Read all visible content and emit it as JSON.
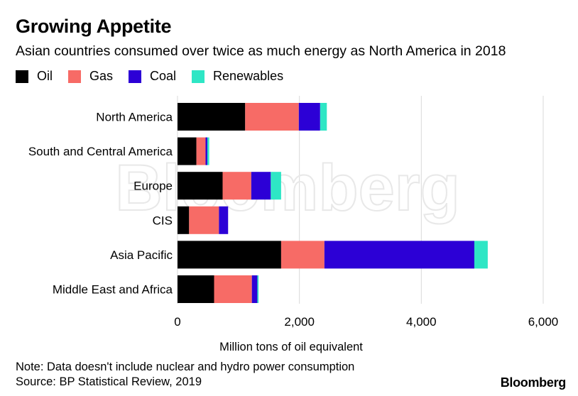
{
  "header": {
    "title": "Growing Appetite",
    "subtitle": "Asian countries consumed over twice as much energy as North America in 2018"
  },
  "legend": [
    {
      "label": "Oil",
      "color": "#000000"
    },
    {
      "label": "Gas",
      "color": "#f76b66"
    },
    {
      "label": "Coal",
      "color": "#2c00d6"
    },
    {
      "label": "Renewables",
      "color": "#2ee6c5"
    }
  ],
  "chart_data": {
    "type": "bar",
    "orientation": "horizontal",
    "stacked": true,
    "categories": [
      "North America",
      "South and Central America",
      "Europe",
      "CIS",
      "Asia Pacific",
      "Middle East and Africa"
    ],
    "series": [
      {
        "name": "Oil",
        "color": "#000000",
        "values": [
          1110,
          310,
          740,
          190,
          1700,
          600
        ]
      },
      {
        "name": "Gas",
        "color": "#f76b66",
        "values": [
          880,
          150,
          470,
          490,
          710,
          620
        ]
      },
      {
        "name": "Coal",
        "color": "#2c00d6",
        "values": [
          350,
          30,
          320,
          150,
          2460,
          90
        ]
      },
      {
        "name": "Renewables",
        "color": "#2ee6c5",
        "values": [
          110,
          30,
          170,
          0,
          220,
          20
        ]
      }
    ],
    "xlabel": "Million tons of oil equivalent",
    "xlim": [
      0,
      6000
    ],
    "xticks": [
      "0",
      "2,000",
      "4,000",
      "6,000"
    ],
    "xtick_values": [
      0,
      2000,
      4000,
      6000
    ],
    "grid": true
  },
  "watermark": "Bloomberg",
  "footer": {
    "note": "Note: Data doesn't include nuclear and hydro power consumption",
    "source": "Source: BP Statistical Review, 2019",
    "brand": "Bloomberg"
  }
}
